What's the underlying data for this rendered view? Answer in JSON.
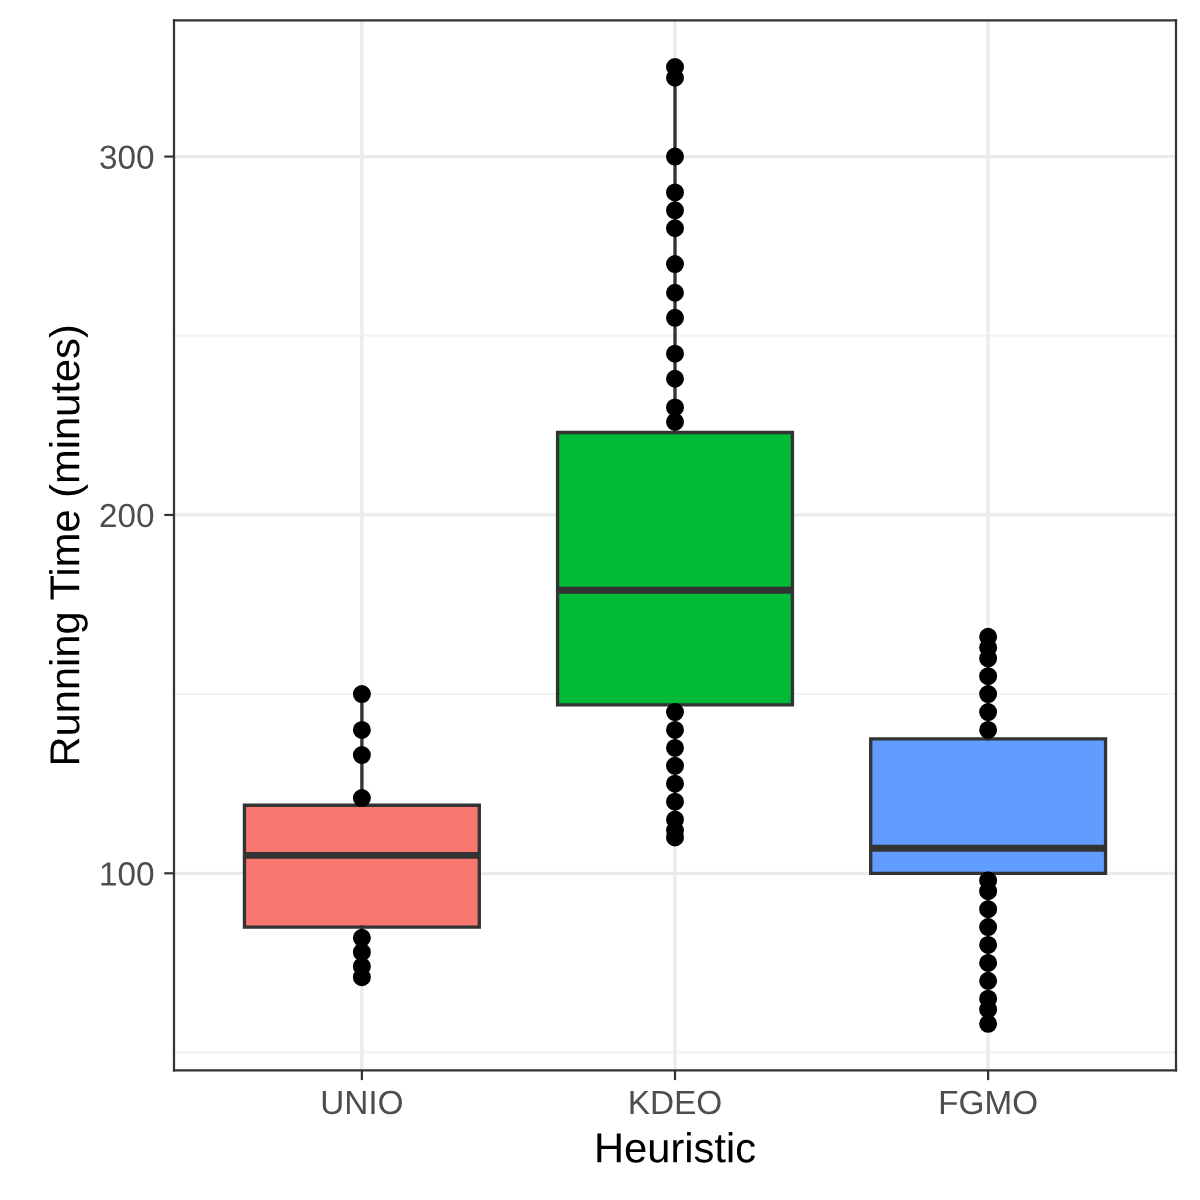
{
  "chart_data": {
    "type": "box",
    "xlabel": "Heuristic",
    "ylabel": "Running Time (minutes)",
    "categories": [
      "UNIO",
      "KDEO",
      "FGMO"
    ],
    "colors": [
      "#f8766d",
      "#00ba38",
      "#619cff"
    ],
    "boxes": [
      {
        "low": 71,
        "q1": 85,
        "median": 105,
        "q3": 119,
        "high": 150,
        "outliers": [
          150,
          140,
          133,
          121,
          82,
          78,
          74,
          71
        ]
      },
      {
        "low": 110,
        "q1": 147,
        "median": 179,
        "q3": 223,
        "high": 325,
        "outliers": [
          325,
          322,
          300,
          290,
          285,
          280,
          270,
          262,
          255,
          245,
          238,
          230,
          226,
          145,
          140,
          135,
          130,
          125,
          120,
          115,
          112,
          110
        ]
      },
      {
        "low": 58,
        "q1": 100,
        "median": 107,
        "q3": 137.5,
        "high": 166,
        "outliers": [
          140,
          145,
          150,
          155,
          160,
          163,
          166,
          98,
          95,
          90,
          85,
          80,
          75,
          70,
          65,
          62,
          58
        ]
      }
    ],
    "ylim": [
      45,
      338
    ],
    "yticks": [
      100,
      200,
      300
    ],
    "grid": true
  }
}
